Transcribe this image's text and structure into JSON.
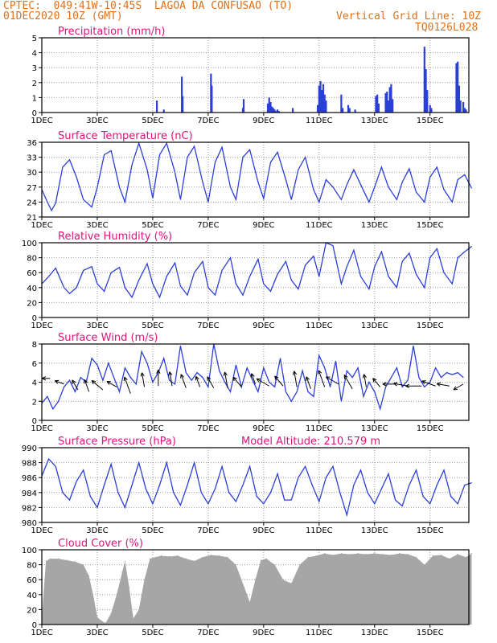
{
  "header": {
    "line1_left": "CPTEC:  049:41W-10:45S  LAGOA DA CONFUSAO (TO)",
    "line2_left": "01DEC2020 10Z (GMT)",
    "line2_right": "Vertical Grid Line: 10Z",
    "line3_right": "TQ0126L028"
  },
  "model_altitude": "Model Altitude: 210.579 m",
  "x_ticks": [
    "1DEC",
    "3DEC",
    "5DEC",
    "7DEC",
    "9DEC",
    "11DEC",
    "13DEC",
    "15DEC"
  ],
  "colors": {
    "line": "#2b3fd8",
    "bar": "#2b3fd8",
    "cloud": "#a6a6a6",
    "title": "#e0137a",
    "header": "#e0701a"
  },
  "chart_data": [
    {
      "type": "bar",
      "title": "Precipitation (mm/h)",
      "ylim": [
        0,
        5
      ],
      "yticks": [
        0,
        1,
        2,
        3,
        4,
        5
      ],
      "x_unit": "days since 1DEC 10Z",
      "x": [
        4.15,
        4.4,
        5.05,
        5.08,
        6.1,
        6.13,
        7.25,
        7.28,
        8.15,
        8.2,
        8.25,
        8.3,
        8.35,
        8.4,
        8.45,
        8.5,
        8.55,
        9.05,
        9.95,
        10.0,
        10.05,
        10.1,
        10.15,
        10.2,
        10.25,
        10.8,
        10.85,
        11.05,
        11.1,
        11.3,
        12.05,
        12.1,
        12.15,
        12.4,
        12.45,
        12.5,
        12.55,
        12.6,
        12.65,
        13.8,
        13.85,
        13.9,
        14.0,
        14.05,
        14.95,
        15.0,
        15.05,
        15.1,
        15.2,
        15.25,
        15.3
      ],
      "values": [
        0.8,
        0.2,
        2.4,
        1.1,
        2.6,
        1.8,
        0.3,
        0.9,
        0.6,
        1.0,
        0.7,
        0.4,
        0.3,
        0.2,
        0.1,
        0.2,
        0.1,
        0.3,
        0.5,
        1.8,
        2.1,
        1.5,
        1.9,
        1.2,
        0.8,
        1.2,
        0.3,
        0.5,
        0.3,
        0.2,
        1.1,
        1.2,
        0.6,
        1.3,
        1.4,
        0.8,
        1.7,
        1.9,
        0.9,
        4.4,
        2.9,
        1.5,
        0.5,
        0.3,
        3.3,
        3.4,
        1.8,
        0.8,
        0.7,
        0.3,
        0.2
      ]
    },
    {
      "type": "line",
      "title": "Surface Temperature (nC)",
      "ylim": [
        21,
        36
      ],
      "yticks": [
        21,
        24,
        27,
        30,
        33,
        36
      ],
      "x": [
        0,
        0.2,
        0.35,
        0.5,
        0.75,
        1.0,
        1.25,
        1.5,
        1.8,
        2.0,
        2.25,
        2.5,
        2.8,
        3.0,
        3.25,
        3.5,
        3.8,
        4.0,
        4.25,
        4.5,
        4.8,
        5.0,
        5.25,
        5.5,
        5.8,
        6.0,
        6.25,
        6.5,
        6.8,
        7.0,
        7.25,
        7.5,
        7.8,
        8.0,
        8.25,
        8.5,
        8.8,
        9.0,
        9.25,
        9.5,
        9.8,
        10.0,
        10.25,
        10.5,
        10.8,
        11.0,
        11.25,
        11.5,
        11.8,
        12.0,
        12.25,
        12.5,
        12.8,
        13.0,
        13.25,
        13.5,
        13.8,
        14.0,
        14.25,
        14.5,
        14.8,
        15.0,
        15.25,
        15.5
      ],
      "values": [
        26.5,
        24.0,
        22.3,
        23.8,
        31.0,
        32.5,
        29.0,
        24.5,
        23.0,
        27.0,
        33.5,
        34.3,
        27.0,
        24.0,
        31.5,
        35.8,
        30.5,
        24.8,
        33.5,
        35.8,
        30.0,
        24.5,
        33.0,
        35.2,
        28.0,
        24.0,
        32.0,
        35.0,
        27.0,
        24.5,
        33.0,
        34.5,
        28.0,
        24.7,
        32.0,
        34.0,
        28.5,
        24.5,
        30.5,
        33.0,
        26.5,
        24.0,
        28.5,
        27.0,
        24.5,
        27.5,
        30.5,
        27.5,
        24.0,
        27.0,
        31.0,
        27.0,
        24.5,
        28.0,
        30.7,
        26.0,
        24.0,
        29.0,
        31.0,
        26.5,
        24.0,
        28.5,
        29.5,
        26.8
      ]
    },
    {
      "type": "line",
      "title": "Relative Humidity (%)",
      "ylim": [
        0,
        100
      ],
      "yticks": [
        0,
        20,
        40,
        60,
        80,
        100
      ],
      "x": [
        0,
        0.25,
        0.5,
        0.8,
        1.0,
        1.25,
        1.5,
        1.8,
        2.0,
        2.25,
        2.5,
        2.8,
        3.0,
        3.25,
        3.5,
        3.8,
        4.0,
        4.25,
        4.5,
        4.8,
        5.0,
        5.25,
        5.5,
        5.8,
        6.0,
        6.25,
        6.5,
        6.8,
        7.0,
        7.25,
        7.5,
        7.8,
        8.0,
        8.25,
        8.5,
        8.8,
        9.0,
        9.25,
        9.5,
        9.8,
        10.0,
        10.25,
        10.5,
        10.8,
        11.0,
        11.25,
        11.5,
        11.8,
        12.0,
        12.25,
        12.5,
        12.8,
        13.0,
        13.25,
        13.5,
        13.8,
        14.0,
        14.25,
        14.5,
        14.8,
        15.0,
        15.25,
        15.5
      ],
      "values": [
        45,
        55,
        66,
        40,
        32,
        40,
        63,
        68,
        45,
        35,
        60,
        67,
        40,
        27,
        50,
        72,
        45,
        27,
        55,
        73,
        42,
        30,
        60,
        75,
        40,
        30,
        63,
        80,
        45,
        30,
        55,
        78,
        45,
        35,
        58,
        75,
        50,
        38,
        70,
        82,
        55,
        100,
        96,
        45,
        68,
        90,
        55,
        38,
        68,
        88,
        55,
        40,
        75,
        86,
        58,
        40,
        80,
        92,
        60,
        45,
        80,
        88,
        95
      ]
    },
    {
      "type": "line",
      "title": "Surface Wind (m/s)",
      "ylim": [
        0,
        8
      ],
      "yticks": [
        0,
        2,
        4,
        6,
        8
      ],
      "x": [
        0,
        0.2,
        0.4,
        0.6,
        0.8,
        1.0,
        1.2,
        1.4,
        1.6,
        1.8,
        2.0,
        2.2,
        2.4,
        2.6,
        2.8,
        3.0,
        3.2,
        3.4,
        3.6,
        3.8,
        4.0,
        4.2,
        4.4,
        4.6,
        4.8,
        5.0,
        5.2,
        5.4,
        5.6,
        5.8,
        6.0,
        6.2,
        6.4,
        6.6,
        6.8,
        7.0,
        7.2,
        7.4,
        7.6,
        7.8,
        8.0,
        8.2,
        8.4,
        8.6,
        8.8,
        9.0,
        9.2,
        9.4,
        9.6,
        9.8,
        10.0,
        10.2,
        10.4,
        10.6,
        10.8,
        11.0,
        11.2,
        11.4,
        11.6,
        11.8,
        12.0,
        12.2,
        12.4,
        12.6,
        12.8,
        13.0,
        13.2,
        13.4,
        13.6,
        13.8,
        14.0,
        14.2,
        14.4,
        14.6,
        14.8,
        15.0,
        15.2
      ],
      "values": [
        1.8,
        2.5,
        1.2,
        2.0,
        3.5,
        4.2,
        3.0,
        4.5,
        4.0,
        6.5,
        5.8,
        4.2,
        6.0,
        4.5,
        3.0,
        5.5,
        4.5,
        3.8,
        7.2,
        6.0,
        4.0,
        5.0,
        6.5,
        4.2,
        3.8,
        7.8,
        5.0,
        4.2,
        5.0,
        4.5,
        3.5,
        8.0,
        5.2,
        4.0,
        3.0,
        5.8,
        3.5,
        5.5,
        4.2,
        3.0,
        5.5,
        4.0,
        3.5,
        6.5,
        3.0,
        2.0,
        3.0,
        5.2,
        3.0,
        2.5,
        6.8,
        5.5,
        3.5,
        6.2,
        2.0,
        5.2,
        4.5,
        5.5,
        2.5,
        4.0,
        3.0,
        1.2,
        3.5,
        4.5,
        5.5,
        3.5,
        4.2,
        7.8,
        4.5,
        3.5,
        4.0,
        5.5,
        4.5,
        5.0,
        4.8,
        5.0,
        4.5
      ],
      "arrows": {
        "x": [
          0.3,
          0.8,
          1.3,
          1.7,
          2.2,
          2.7,
          3.2,
          3.7,
          4.2,
          4.7,
          5.2,
          5.7,
          6.2,
          6.7,
          7.2,
          7.7,
          8.2,
          8.7,
          9.2,
          9.7,
          10.2,
          10.7,
          11.2,
          11.7,
          12.2,
          12.7,
          13.2,
          13.7,
          14.2,
          14.7,
          15.2
        ],
        "y": [
          4.4,
          3.8,
          3.2,
          3.0,
          3.2,
          3.5,
          2.8,
          3.5,
          3.6,
          3.6,
          3.4,
          3.5,
          3.4,
          3.4,
          3.5,
          3.8,
          3.6,
          3.6,
          3.5,
          3.3,
          3.5,
          3.8,
          3.3,
          3.5,
          3.5,
          3.8,
          3.6,
          3.6,
          3.6,
          3.6,
          3.8
        ],
        "dir_deg": [
          180,
          200,
          240,
          250,
          220,
          210,
          250,
          260,
          270,
          260,
          250,
          250,
          240,
          260,
          230,
          250,
          210,
          230,
          260,
          250,
          250,
          210,
          240,
          260,
          230,
          180,
          190,
          180,
          200,
          190,
          150
        ],
        "len": [
          10,
          12,
          14,
          16,
          18,
          14,
          22,
          18,
          20,
          18,
          18,
          14,
          16,
          20,
          16,
          14,
          18,
          16,
          20,
          16,
          22,
          18,
          20,
          16,
          14,
          14,
          18,
          20,
          18,
          16,
          14
        ]
      }
    },
    {
      "type": "line",
      "title": "Surface Pressure (hPa)",
      "ylim": [
        980,
        990
      ],
      "yticks": [
        980,
        982,
        984,
        986,
        988,
        990
      ],
      "x": [
        0,
        0.25,
        0.5,
        0.75,
        1.0,
        1.25,
        1.5,
        1.75,
        2.0,
        2.25,
        2.5,
        2.75,
        3.0,
        3.25,
        3.5,
        3.75,
        4.0,
        4.25,
        4.5,
        4.75,
        5.0,
        5.25,
        5.5,
        5.75,
        6.0,
        6.25,
        6.5,
        6.75,
        7.0,
        7.25,
        7.5,
        7.75,
        8.0,
        8.25,
        8.5,
        8.75,
        9.0,
        9.25,
        9.5,
        9.75,
        10.0,
        10.25,
        10.5,
        10.75,
        11.0,
        11.25,
        11.5,
        11.75,
        12.0,
        12.25,
        12.5,
        12.75,
        13.0,
        13.25,
        13.5,
        13.75,
        14.0,
        14.25,
        14.5,
        14.75,
        15.0,
        15.25,
        15.5
      ],
      "values": [
        986.2,
        988.5,
        987.5,
        984.0,
        983.0,
        985.5,
        987.0,
        983.5,
        982.0,
        985.0,
        987.8,
        984.0,
        982.0,
        985.0,
        988.0,
        984.5,
        982.5,
        985.0,
        988.0,
        984.0,
        982.3,
        985.0,
        988.0,
        984.0,
        982.5,
        984.5,
        987.5,
        984.0,
        982.8,
        985.0,
        987.5,
        983.5,
        982.5,
        984.0,
        986.5,
        983.0,
        983.0,
        986.0,
        987.5,
        985.0,
        982.8,
        986.0,
        987.5,
        984.0,
        981.0,
        985.0,
        987.0,
        984.0,
        982.5,
        984.5,
        986.5,
        983.0,
        982.2,
        985.0,
        987.0,
        983.5,
        982.5,
        985.0,
        987.0,
        983.5,
        982.5,
        985.0,
        985.3
      ]
    },
    {
      "type": "area",
      "title": "Cloud Cover (%)",
      "ylim": [
        0,
        100
      ],
      "yticks": [
        0,
        20,
        40,
        60,
        80,
        100
      ],
      "x": [
        0,
        0.15,
        0.3,
        0.6,
        0.9,
        1.2,
        1.5,
        1.7,
        1.85,
        2.0,
        2.15,
        2.3,
        2.5,
        2.7,
        2.9,
        3.0,
        3.15,
        3.3,
        3.5,
        3.7,
        3.9,
        4.1,
        4.3,
        4.6,
        4.9,
        5.2,
        5.5,
        5.8,
        6.1,
        6.4,
        6.7,
        7.0,
        7.3,
        7.5,
        7.7,
        7.9,
        8.1,
        8.4,
        8.7,
        9.0,
        9.3,
        9.6,
        9.9,
        10.2,
        10.5,
        10.8,
        11.1,
        11.4,
        11.7,
        12.0,
        12.3,
        12.6,
        12.9,
        13.2,
        13.5,
        13.8,
        14.1,
        14.4,
        14.7,
        15.0,
        15.3,
        15.5
      ],
      "values": [
        10,
        85,
        88,
        88,
        86,
        84,
        80,
        65,
        40,
        10,
        5,
        2,
        15,
        40,
        70,
        85,
        50,
        8,
        20,
        60,
        88,
        90,
        92,
        91,
        92,
        88,
        85,
        90,
        93,
        92,
        90,
        80,
        50,
        30,
        60,
        86,
        88,
        80,
        60,
        55,
        80,
        90,
        92,
        95,
        93,
        95,
        94,
        95,
        94,
        95,
        94,
        93,
        95,
        94,
        90,
        80,
        92,
        93,
        88,
        94,
        90,
        95
      ]
    }
  ]
}
